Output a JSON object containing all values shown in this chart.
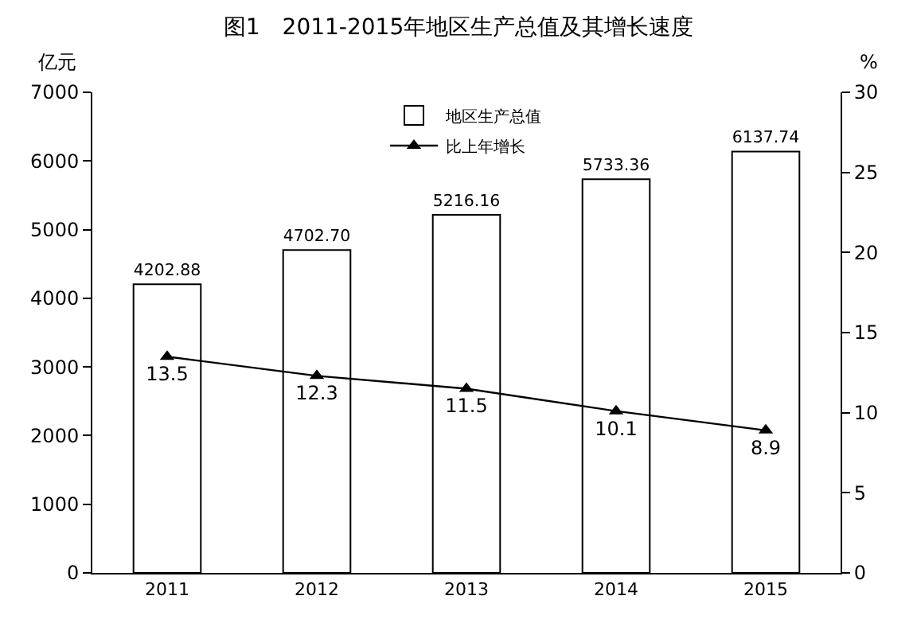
{
  "chart_data": {
    "type": "bar",
    "title": "图1　2011-2015年地区生产总值及其增长速度",
    "categories": [
      "2011",
      "2012",
      "2013",
      "2014",
      "2015"
    ],
    "ylabel": "亿元",
    "y2label": "%",
    "ylim": [
      0,
      7000
    ],
    "yticks": [
      0,
      1000,
      2000,
      3000,
      4000,
      5000,
      6000,
      7000
    ],
    "y2lim": [
      0,
      30
    ],
    "y2ticks": [
      0,
      5,
      10,
      15,
      20,
      25,
      30
    ],
    "grid": false,
    "legend": "top",
    "series": [
      {
        "name": "地区生产总值",
        "color": "#ffffff",
        "values": [
          4202.88,
          4702.7,
          5216.16,
          5733.36,
          6137.74
        ],
        "value_labels": [
          "4202.88",
          "4702.70",
          "5216.16",
          "5733.36",
          "6137.74"
        ]
      },
      {
        "name": "比上年增长",
        "type": "line",
        "axis": "y2",
        "color": "#000000",
        "marker": "triangle",
        "values": [
          13.5,
          12.3,
          11.5,
          10.1,
          8.9
        ],
        "value_labels": [
          "13.5",
          "12.3",
          "11.5",
          "10.1",
          "8.9"
        ]
      }
    ]
  }
}
